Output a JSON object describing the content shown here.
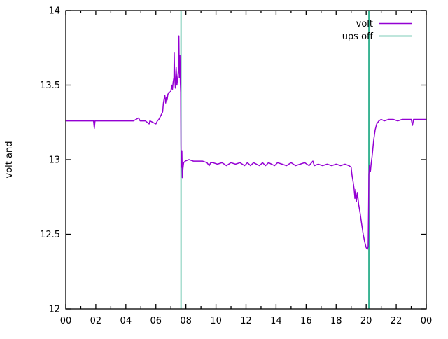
{
  "chart_data": {
    "type": "line",
    "title": "",
    "xlabel": "",
    "ylabel": "volt and",
    "xlim": [
      0,
      24
    ],
    "ylim": [
      12,
      14
    ],
    "grid": false,
    "border_color": "#000000",
    "background_color": "#ffffff",
    "x_major_ticks": [
      0,
      2,
      4,
      6,
      8,
      10,
      12,
      14,
      16,
      18,
      20,
      22,
      24
    ],
    "x_tick_labels": [
      "00",
      "02",
      "04",
      "06",
      "08",
      "10",
      "12",
      "14",
      "16",
      "18",
      "20",
      "22",
      "00"
    ],
    "x_minor_ticks": [
      1,
      3,
      5,
      7,
      9,
      11,
      13,
      15,
      17,
      19,
      21,
      23
    ],
    "y_major_ticks": [
      12,
      12.5,
      13,
      13.5,
      14
    ],
    "y_tick_labels": [
      "12",
      "12.5",
      "13",
      "13.5",
      "14"
    ],
    "legend": {
      "position": "top-right",
      "entries": [
        {
          "label": "volt",
          "color": "#9400d3"
        },
        {
          "label": "ups off",
          "color": "#009e73"
        }
      ]
    },
    "series": [
      {
        "name": "volt",
        "color": "#9400d3",
        "points": [
          [
            0,
            13.26
          ],
          [
            0.5,
            13.26
          ],
          [
            1.0,
            13.26
          ],
          [
            1.5,
            13.26
          ],
          [
            1.85,
            13.26
          ],
          [
            1.9,
            13.21
          ],
          [
            1.95,
            13.26
          ],
          [
            2.5,
            13.26
          ],
          [
            3.0,
            13.26
          ],
          [
            3.5,
            13.26
          ],
          [
            4.0,
            13.26
          ],
          [
            4.5,
            13.26
          ],
          [
            4.85,
            13.28
          ],
          [
            4.95,
            13.26
          ],
          [
            5.3,
            13.26
          ],
          [
            5.55,
            13.24
          ],
          [
            5.6,
            13.26
          ],
          [
            5.8,
            13.25
          ],
          [
            6.0,
            13.24
          ],
          [
            6.1,
            13.26
          ],
          [
            6.2,
            13.27
          ],
          [
            6.35,
            13.3
          ],
          [
            6.45,
            13.32
          ],
          [
            6.5,
            13.38
          ],
          [
            6.55,
            13.41
          ],
          [
            6.6,
            13.43
          ],
          [
            6.65,
            13.38
          ],
          [
            6.7,
            13.42
          ],
          [
            6.75,
            13.4
          ],
          [
            6.8,
            13.44
          ],
          [
            6.9,
            13.45
          ],
          [
            7.0,
            13.46
          ],
          [
            7.05,
            13.5
          ],
          [
            7.1,
            13.47
          ],
          [
            7.15,
            13.52
          ],
          [
            7.2,
            13.55
          ],
          [
            7.22,
            13.72
          ],
          [
            7.25,
            13.55
          ],
          [
            7.3,
            13.48
          ],
          [
            7.35,
            13.62
          ],
          [
            7.4,
            13.5
          ],
          [
            7.45,
            13.55
          ],
          [
            7.5,
            13.6
          ],
          [
            7.53,
            13.83
          ],
          [
            7.56,
            13.55
          ],
          [
            7.6,
            13.7
          ],
          [
            7.63,
            13.52
          ],
          [
            7.65,
            13.45
          ],
          [
            7.67,
            13.1
          ],
          [
            7.7,
            12.95
          ],
          [
            7.73,
            13.06
          ],
          [
            7.76,
            12.88
          ],
          [
            7.8,
            12.94
          ],
          [
            7.85,
            12.98
          ],
          [
            7.95,
            12.99
          ],
          [
            8.2,
            13.0
          ],
          [
            8.5,
            12.99
          ],
          [
            8.8,
            12.99
          ],
          [
            9.1,
            12.99
          ],
          [
            9.4,
            12.98
          ],
          [
            9.55,
            12.96
          ],
          [
            9.65,
            12.98
          ],
          [
            9.8,
            12.98
          ],
          [
            10.1,
            12.97
          ],
          [
            10.4,
            12.98
          ],
          [
            10.7,
            12.96
          ],
          [
            11.0,
            12.98
          ],
          [
            11.3,
            12.97
          ],
          [
            11.6,
            12.98
          ],
          [
            11.9,
            12.96
          ],
          [
            12.1,
            12.98
          ],
          [
            12.3,
            12.96
          ],
          [
            12.5,
            12.98
          ],
          [
            12.7,
            12.97
          ],
          [
            12.9,
            12.96
          ],
          [
            13.1,
            12.98
          ],
          [
            13.3,
            12.96
          ],
          [
            13.5,
            12.98
          ],
          [
            13.7,
            12.97
          ],
          [
            13.9,
            12.96
          ],
          [
            14.1,
            12.98
          ],
          [
            14.4,
            12.97
          ],
          [
            14.7,
            12.96
          ],
          [
            15.0,
            12.98
          ],
          [
            15.3,
            12.96
          ],
          [
            15.6,
            12.97
          ],
          [
            15.9,
            12.98
          ],
          [
            16.2,
            12.96
          ],
          [
            16.45,
            12.99
          ],
          [
            16.55,
            12.96
          ],
          [
            16.8,
            12.97
          ],
          [
            17.1,
            12.96
          ],
          [
            17.4,
            12.97
          ],
          [
            17.7,
            12.96
          ],
          [
            18.0,
            12.97
          ],
          [
            18.3,
            12.96
          ],
          [
            18.6,
            12.97
          ],
          [
            18.85,
            12.96
          ],
          [
            19.0,
            12.95
          ],
          [
            19.05,
            12.9
          ],
          [
            19.15,
            12.84
          ],
          [
            19.2,
            12.8
          ],
          [
            19.25,
            12.74
          ],
          [
            19.3,
            12.8
          ],
          [
            19.35,
            12.72
          ],
          [
            19.42,
            12.78
          ],
          [
            19.5,
            12.7
          ],
          [
            19.6,
            12.64
          ],
          [
            19.7,
            12.57
          ],
          [
            19.8,
            12.5
          ],
          [
            19.9,
            12.45
          ],
          [
            20.0,
            12.41
          ],
          [
            20.08,
            12.4
          ],
          [
            20.13,
            12.42
          ],
          [
            20.16,
            12.68
          ],
          [
            20.18,
            12.9
          ],
          [
            20.22,
            12.96
          ],
          [
            20.28,
            12.92
          ],
          [
            20.33,
            12.97
          ],
          [
            20.4,
            13.03
          ],
          [
            20.5,
            13.13
          ],
          [
            20.6,
            13.2
          ],
          [
            20.7,
            13.24
          ],
          [
            20.85,
            13.26
          ],
          [
            21.0,
            13.27
          ],
          [
            21.2,
            13.26
          ],
          [
            21.5,
            13.27
          ],
          [
            21.8,
            13.27
          ],
          [
            22.1,
            13.26
          ],
          [
            22.4,
            13.27
          ],
          [
            22.7,
            13.27
          ],
          [
            23.0,
            13.27
          ],
          [
            23.08,
            13.23
          ],
          [
            23.15,
            13.27
          ],
          [
            23.5,
            13.27
          ],
          [
            24,
            13.27
          ]
        ]
      }
    ],
    "vlines": {
      "name": "ups off",
      "color": "#009e73",
      "x": [
        7.67,
        20.18
      ]
    }
  }
}
